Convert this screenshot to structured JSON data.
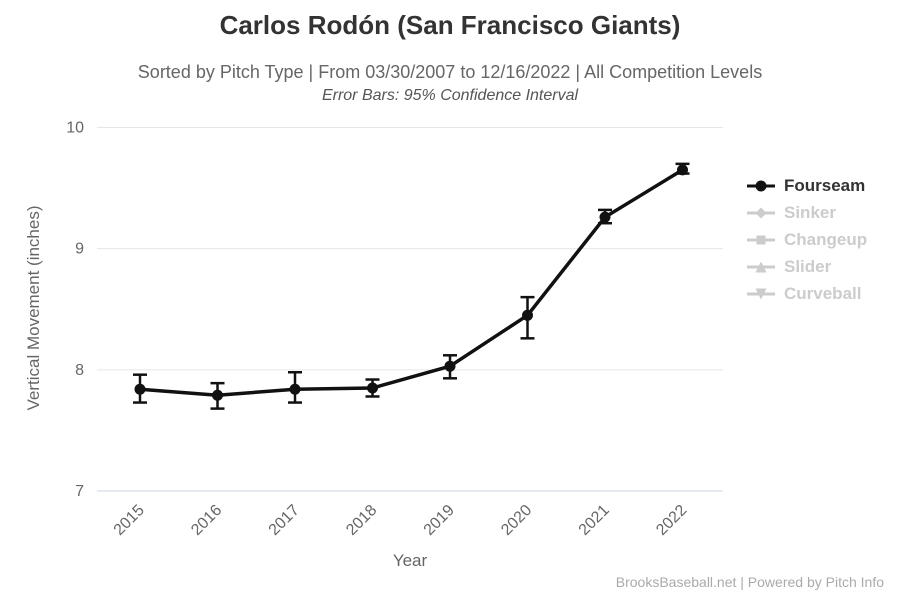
{
  "header": {
    "title": "Carlos Rodón (San Francisco Giants)",
    "subtitle": "Sorted by Pitch Type | From 03/30/2007 to 12/16/2022 | All Competition Levels",
    "note": "Error Bars: 95% Confidence Interval"
  },
  "chart_data": {
    "type": "line",
    "title": "Carlos Rodón (San Francisco Giants)",
    "xlabel": "Year",
    "ylabel": "Vertical Movement (inches)",
    "categories": [
      "2015",
      "2016",
      "2017",
      "2018",
      "2019",
      "2020",
      "2021",
      "2022"
    ],
    "ylim": [
      7,
      10
    ],
    "yticks": [
      7,
      8,
      9,
      10
    ],
    "grid": "horizontal-only",
    "legend_position": "right",
    "error_bars_note": "95% Confidence Interval",
    "series": [
      {
        "name": "Fourseam",
        "marker": "circle",
        "enabled": true,
        "values": [
          7.84,
          7.79,
          7.84,
          7.85,
          8.03,
          8.45,
          9.26,
          9.65
        ],
        "error_low": [
          7.73,
          7.68,
          7.73,
          7.78,
          7.93,
          8.26,
          9.21,
          9.62
        ],
        "error_high": [
          7.96,
          7.89,
          7.98,
          7.92,
          8.12,
          8.6,
          9.32,
          9.7
        ]
      },
      {
        "name": "Sinker",
        "marker": "diamond",
        "enabled": false
      },
      {
        "name": "Changeup",
        "marker": "square",
        "enabled": false
      },
      {
        "name": "Slider",
        "marker": "triangle",
        "enabled": false
      },
      {
        "name": "Curveball",
        "marker": "triangle-down",
        "enabled": false
      }
    ]
  },
  "footer": {
    "credit": "BrooksBaseball.net | Powered by Pitch Info"
  },
  "colors": {
    "series": "#111111",
    "legend_active": "#333333",
    "legend_disabled": "#cccccc",
    "grid": "#e6e6e6",
    "axis_line": "#ccd6eb",
    "tick_label": "#666666",
    "title": "#333333",
    "subtitle": "#666666",
    "credit": "#aaaaaa"
  }
}
